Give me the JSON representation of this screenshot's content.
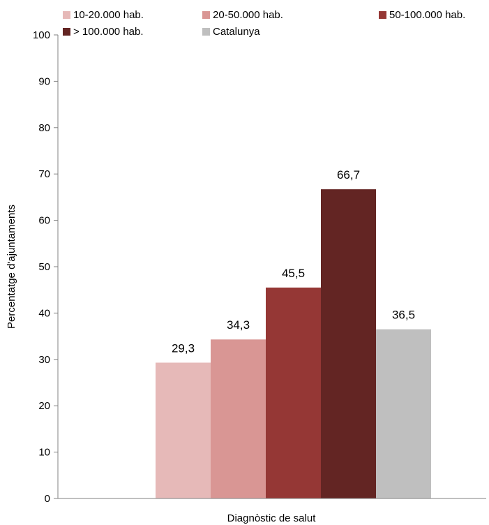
{
  "chart_data": {
    "type": "bar",
    "categories": [
      "Diagnòstic de salut"
    ],
    "series": [
      {
        "name": "10-20.000 hab.",
        "values": [
          29.3
        ],
        "label": "29,3",
        "color": "#e6b9b8"
      },
      {
        "name": "20-50.000 hab.",
        "values": [
          34.3
        ],
        "label": "34,3",
        "color": "#d99694"
      },
      {
        "name": "50-100.000 hab.",
        "values": [
          45.5
        ],
        "label": "45,5",
        "color": "#953735"
      },
      {
        "name": "> 100.000 hab.",
        "values": [
          66.7
        ],
        "label": "66,7",
        "color": "#632523"
      },
      {
        "name": "Catalunya",
        "values": [
          36.5
        ],
        "label": "36,5",
        "color": "#bfbfbf"
      }
    ],
    "xlabel": "Diagnòstic de salut",
    "ylabel": "Percentatge d'ajuntaments",
    "ylim": [
      0,
      100
    ],
    "yticks": [
      "0",
      "10",
      "20",
      "30",
      "40",
      "50",
      "60",
      "70",
      "80",
      "90",
      "100"
    ],
    "grid": false,
    "legend_position": "top"
  }
}
